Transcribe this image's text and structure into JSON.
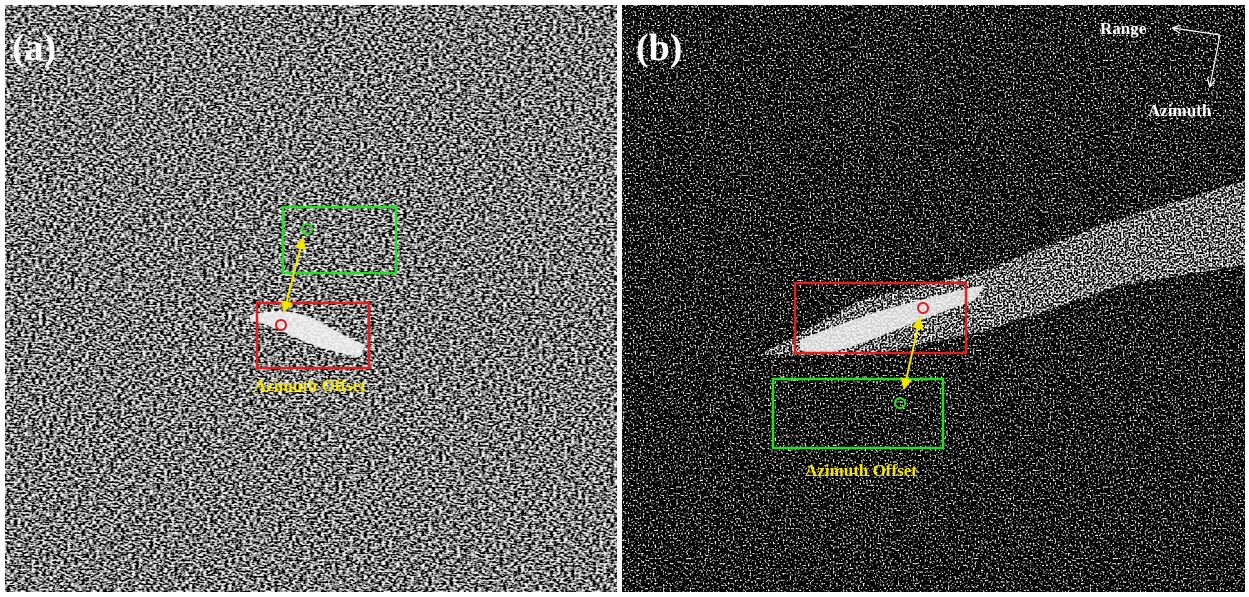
{
  "panels": [
    {
      "label": "(a)",
      "annotation": "Azimuth Offset"
    },
    {
      "label": "(b)",
      "annotation": "Azimuth Offset"
    }
  ],
  "compass": {
    "range": "Range",
    "azimuth": "Azimuth"
  }
}
